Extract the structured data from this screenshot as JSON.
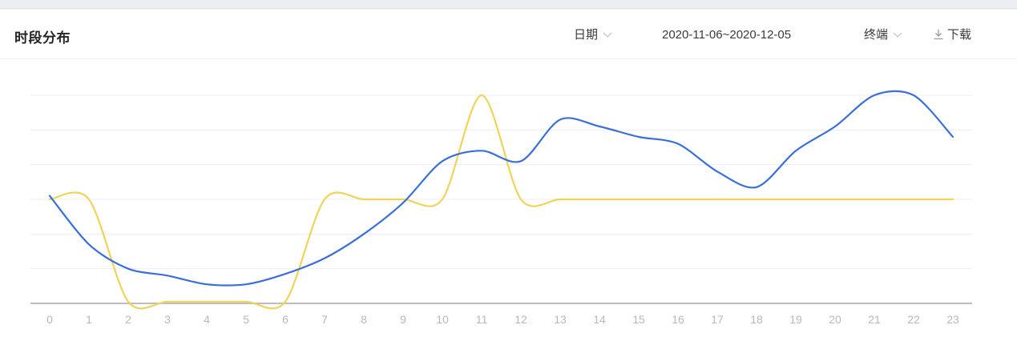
{
  "panel": {
    "title": "时段分布",
    "date_dropdown_label": "日期",
    "date_range": "2020-11-06~2020-12-05",
    "terminal_dropdown_label": "终端",
    "download_label": "下载"
  },
  "colors": {
    "blue_series": "#3b6fd8",
    "yellow_series": "#f0d35a",
    "grid": "#eceef1",
    "axis": "#bdbdbd",
    "tick_text": "#b8b8b8"
  },
  "chart_data": {
    "type": "line",
    "x": [
      0,
      1,
      2,
      3,
      4,
      5,
      6,
      7,
      8,
      9,
      10,
      11,
      12,
      13,
      14,
      15,
      16,
      17,
      18,
      19,
      20,
      21,
      22,
      23
    ],
    "ylim": [
      0,
      6
    ],
    "grid": true,
    "series": [
      {
        "color": "#3b6fd8",
        "values": [
          3.1,
          1.7,
          1.0,
          0.8,
          0.55,
          0.55,
          0.85,
          1.3,
          2.0,
          2.9,
          4.1,
          4.4,
          4.1,
          5.3,
          5.1,
          4.8,
          4.6,
          3.8,
          3.35,
          4.4,
          5.1,
          6.0,
          6.0,
          4.8
        ]
      },
      {
        "color": "#f0d35a",
        "values": [
          3.0,
          3.0,
          0.05,
          0.05,
          0.05,
          0.05,
          0.05,
          3.0,
          3.0,
          3.0,
          3.0,
          6.0,
          3.0,
          3.0,
          3.0,
          3.0,
          3.0,
          3.0,
          3.0,
          3.0,
          3.0,
          3.0,
          3.0,
          3.0
        ]
      }
    ]
  }
}
